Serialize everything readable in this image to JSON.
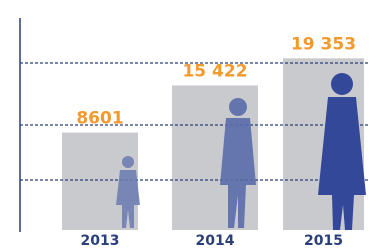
{
  "chart_data": {
    "type": "bar",
    "categories": [
      "2013",
      "2014",
      "2015"
    ],
    "values": [
      8601,
      15422,
      19353
    ],
    "value_labels": [
      "8601",
      "15 422",
      "19 353"
    ],
    "color": "#c9cacd",
    "ylim": [
      -5500,
      22000
    ]
  }
}
